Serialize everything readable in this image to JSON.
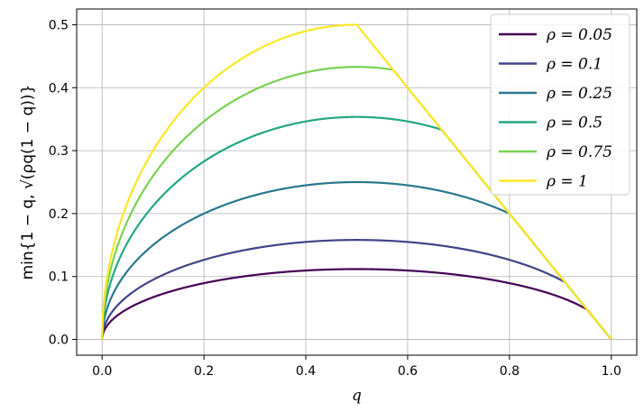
{
  "chart_data": {
    "type": "line",
    "xlabel": "q",
    "ylabel": "min{1 − q, √(ρq(1 − q))}",
    "xlim": [
      -0.05,
      1.05
    ],
    "ylim": [
      -0.025,
      0.525
    ],
    "xticks": [
      0.0,
      0.2,
      0.4,
      0.6,
      0.8,
      1.0
    ],
    "xtick_labels": [
      "0.0",
      "0.2",
      "0.4",
      "0.6",
      "0.8",
      "1.0"
    ],
    "yticks": [
      0.0,
      0.1,
      0.2,
      0.3,
      0.4,
      0.5
    ],
    "ytick_labels": [
      "0.0",
      "0.1",
      "0.2",
      "0.3",
      "0.4",
      "0.5"
    ],
    "grid": true,
    "legend": "top-right",
    "series": [
      {
        "name": "ρ = 0.05",
        "rho": 0.05,
        "color": "#440154"
      },
      {
        "name": "ρ = 0.1",
        "rho": 0.1,
        "color": "#414487"
      },
      {
        "name": "ρ = 0.25",
        "rho": 0.25,
        "color": "#2a788e"
      },
      {
        "name": "ρ = 0.5",
        "rho": 0.5,
        "color": "#22a884"
      },
      {
        "name": "ρ = 0.75",
        "rho": 0.75,
        "color": "#7ad151"
      },
      {
        "name": "ρ = 1",
        "rho": 1,
        "color": "#fde725"
      }
    ]
  }
}
